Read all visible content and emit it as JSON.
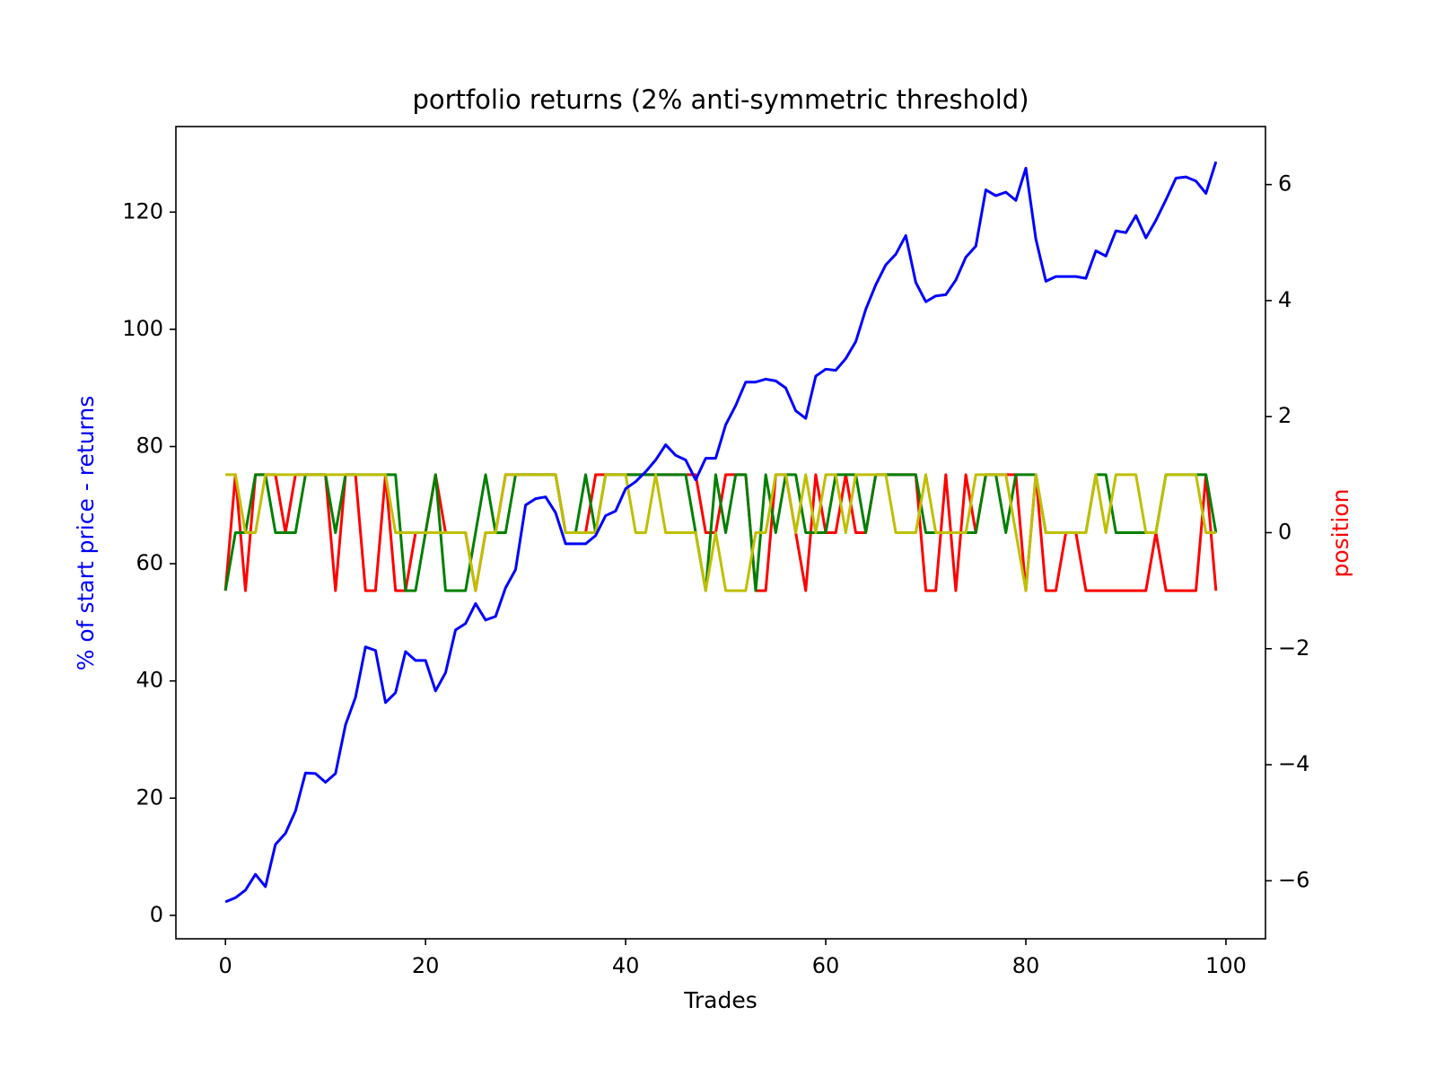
{
  "chart_data": {
    "type": "line",
    "title": "portfolio returns (2% anti-symmetric threshold)",
    "xlabel": "Trades",
    "ylabel": "% of start price - returns",
    "ylabel_color": "#0000ff",
    "y2label": "position",
    "y2label_color": "#ff0000",
    "xlim": [
      -4.95,
      103.95
    ],
    "xticks": [
      0,
      20,
      40,
      60,
      80,
      100
    ],
    "ylim": [
      -4.0,
      134.6
    ],
    "yticks": [
      0,
      20,
      40,
      60,
      80,
      100,
      120
    ],
    "y2lim": [
      -7,
      7
    ],
    "y2ticks": [
      {
        "value": -6,
        "label": "−6"
      },
      {
        "value": -4,
        "label": "−4"
      },
      {
        "value": -2,
        "label": "−2"
      },
      0,
      2,
      4,
      6
    ],
    "x": [
      0,
      1,
      2,
      3,
      4,
      5,
      6,
      7,
      8,
      9,
      10,
      11,
      12,
      13,
      14,
      15,
      16,
      17,
      18,
      19,
      20,
      21,
      22,
      23,
      24,
      25,
      26,
      27,
      28,
      29,
      30,
      31,
      32,
      33,
      34,
      35,
      36,
      37,
      38,
      39,
      40,
      41,
      42,
      43,
      44,
      45,
      46,
      47,
      48,
      49,
      50,
      51,
      52,
      53,
      54,
      55,
      56,
      57,
      58,
      59,
      60,
      61,
      62,
      63,
      64,
      65,
      66,
      67,
      68,
      69,
      70,
      71,
      72,
      73,
      74,
      75,
      76,
      77,
      78,
      79,
      80,
      81,
      82,
      83,
      84,
      85,
      86,
      87,
      88,
      89,
      90,
      91,
      92,
      93,
      94,
      95,
      96,
      97,
      98,
      99
    ],
    "series": [
      {
        "color": "#ff0000",
        "axis": "y2",
        "values": [
          -1,
          1,
          -1,
          1,
          1,
          1,
          0,
          1,
          1,
          1,
          1,
          -1,
          1,
          1,
          -1,
          -1,
          1,
          -1,
          -1,
          0,
          0,
          1,
          0,
          0,
          0,
          -1,
          0,
          0,
          1,
          1,
          1,
          1,
          1,
          1,
          0,
          0,
          0,
          1,
          1,
          1,
          1,
          1,
          1,
          1,
          1,
          1,
          1,
          1,
          0,
          0,
          1,
          1,
          1,
          -1,
          -1,
          1,
          1,
          0,
          -1,
          1,
          0,
          0,
          1,
          0,
          0,
          1,
          1,
          1,
          1,
          1,
          -1,
          -1,
          1,
          -1,
          1,
          0,
          1,
          1,
          1,
          1,
          -1,
          1,
          -1,
          -1,
          0,
          0,
          -1,
          -1,
          -1,
          -1,
          -1,
          -1,
          -1,
          0,
          -1,
          -1,
          -1,
          -1,
          1,
          -1
        ]
      },
      {
        "color": "#008000",
        "axis": "y2",
        "values": [
          -1,
          0,
          0,
          1,
          1,
          0,
          0,
          0,
          1,
          1,
          1,
          0,
          1,
          1,
          1,
          1,
          1,
          1,
          -1,
          -1,
          0,
          1,
          -1,
          -1,
          -1,
          0,
          1,
          0,
          0,
          1,
          1,
          1,
          1,
          1,
          0,
          0,
          1,
          0,
          1,
          1,
          1,
          1,
          1,
          1,
          1,
          1,
          1,
          0,
          -1,
          1,
          0,
          1,
          1,
          -1,
          1,
          0,
          1,
          1,
          0,
          0,
          0,
          1,
          1,
          1,
          0,
          1,
          1,
          1,
          1,
          1,
          0,
          0,
          0,
          0,
          0,
          0,
          1,
          1,
          0,
          1,
          1,
          1,
          0,
          0,
          0,
          0,
          0,
          1,
          1,
          0,
          0,
          0,
          0,
          0,
          1,
          1,
          1,
          1,
          1,
          0
        ]
      },
      {
        "color": "#bfbf00",
        "axis": "y2",
        "values": [
          1,
          1,
          0,
          0,
          1,
          1,
          1,
          1,
          1,
          1,
          1,
          1,
          1,
          1,
          1,
          1,
          1,
          0,
          0,
          0,
          0,
          0,
          0,
          0,
          0,
          -1,
          0,
          0,
          1,
          1,
          1,
          1,
          1,
          1,
          0,
          0,
          0,
          0,
          1,
          1,
          1,
          0,
          0,
          1,
          0,
          0,
          0,
          0,
          -1,
          0,
          -1,
          -1,
          -1,
          0,
          0,
          1,
          1,
          0,
          1,
          0,
          1,
          1,
          0,
          1,
          1,
          1,
          1,
          0,
          0,
          0,
          1,
          0,
          0,
          0,
          0,
          1,
          1,
          1,
          1,
          0,
          -1,
          1,
          0,
          0,
          0,
          0,
          0,
          1,
          0,
          1,
          1,
          1,
          0,
          0,
          1,
          1,
          1,
          1,
          0,
          0
        ]
      },
      {
        "color": "#0000ff",
        "axis": "y",
        "values": [
          2.3,
          3,
          4.3,
          7,
          4.9,
          12.1,
          14,
          17.8,
          24.3,
          24.2,
          22.7,
          24.2,
          32.5,
          37.2,
          45.8,
          45.2,
          36.3,
          38,
          45,
          43.5,
          43.5,
          38.3,
          41.4,
          48.7,
          49.8,
          53.2,
          50.4,
          51,
          55.9,
          59,
          70,
          71.1,
          71.4,
          68.7,
          63.4,
          63.4,
          63.4,
          64.8,
          68.2,
          69,
          72.8,
          74,
          75.7,
          77.7,
          80.3,
          78.5,
          77.7,
          74.3,
          78,
          78,
          83.7,
          87,
          91,
          91,
          91.5,
          91.2,
          90,
          86.1,
          84.8,
          92,
          93.2,
          93,
          95,
          97.9,
          103.4,
          107.6,
          111,
          112.8,
          116,
          108,
          104.7,
          105.7,
          105.9,
          108.4,
          112.3,
          114.2,
          123.8,
          122.8,
          123.4,
          122,
          127.5,
          115.4,
          108.2,
          109,
          109,
          109,
          108.7,
          113.4,
          112.5,
          116.8,
          116.5,
          119.4,
          115.6,
          118.6,
          122.1,
          125.8,
          126,
          125.3,
          123.2,
          128.6
        ]
      }
    ]
  }
}
